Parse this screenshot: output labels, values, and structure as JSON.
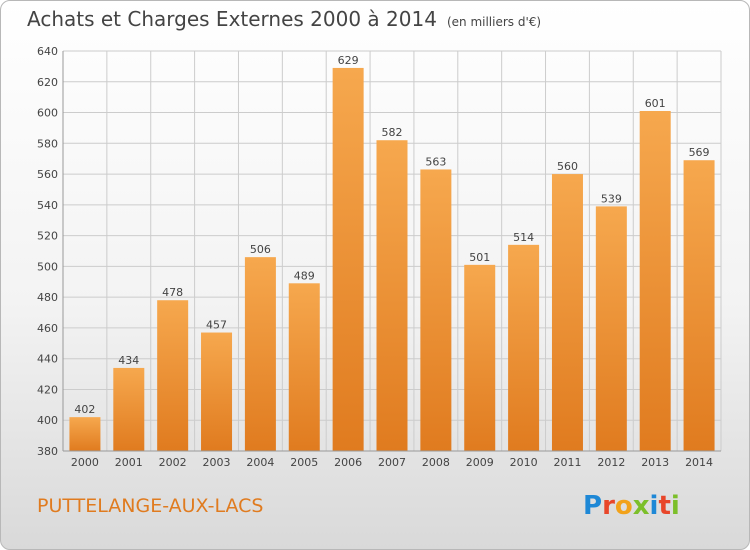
{
  "header": {
    "title": "Achats et Charges Externes 2000 à 2014",
    "unit": "(en milliers d'€)"
  },
  "footer": {
    "commune": "PUTTELANGE-AUX-LACS",
    "logo_letters": [
      "P",
      "r",
      "o",
      "x",
      "i",
      "t",
      "i"
    ]
  },
  "colors": {
    "bar_light": "#f6a84e",
    "bar_dark": "#e07b1f",
    "grid": "#cccccc",
    "text": "#444444"
  },
  "chart_data": {
    "type": "bar",
    "title": "Achats et Charges Externes 2000 à 2014",
    "subtitle": "(en milliers d'€)",
    "categories": [
      "2000",
      "2001",
      "2002",
      "2003",
      "2004",
      "2005",
      "2006",
      "2007",
      "2008",
      "2009",
      "2010",
      "2011",
      "2012",
      "2013",
      "2014"
    ],
    "values": [
      402,
      434,
      478,
      457,
      506,
      489,
      629,
      582,
      563,
      501,
      514,
      560,
      539,
      601,
      569
    ],
    "ylim": [
      380,
      640
    ],
    "yticks": [
      380,
      400,
      420,
      440,
      460,
      480,
      500,
      520,
      540,
      560,
      580,
      600,
      620,
      640
    ],
    "grid": true,
    "data_labels": true
  }
}
